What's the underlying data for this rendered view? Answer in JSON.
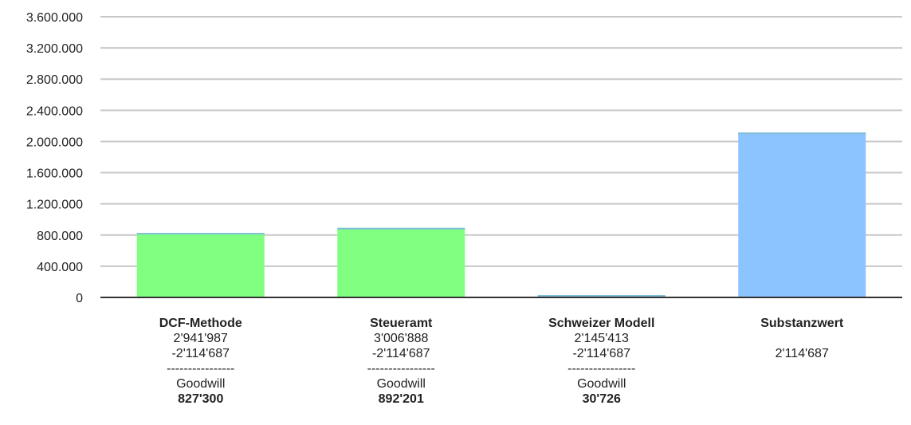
{
  "chart_data": {
    "type": "bar",
    "categories": [
      "DCF-Methode",
      "Steueramt",
      "Schweizer Modell",
      "Substanzwert"
    ],
    "values": [
      827300,
      892201,
      30726,
      2114687
    ],
    "ylim": [
      0,
      3600000
    ],
    "yticks": [
      "0",
      "400.000",
      "800.000",
      "1.200.000",
      "1.600.000",
      "2.000.000",
      "2.400.000",
      "2.800.000",
      "3.200.000",
      "3.600.000"
    ],
    "ytick_values": [
      0,
      400000,
      800000,
      1200000,
      1600000,
      2000000,
      2400000,
      2800000,
      3200000,
      3600000
    ],
    "grid": true,
    "colors": {
      "goodwill": "#80ff80",
      "substanz": "#8cc4ff",
      "bar_top": "#7fbfd8",
      "grid": "#c8c8c8",
      "axis": "#333333"
    }
  },
  "labels": [
    {
      "name": "DCF-Methode",
      "line1": "2'941'987",
      "line2": "-2'114'687",
      "sep": "----------------",
      "gw_label": "Goodwill",
      "gw_value": "827'300"
    },
    {
      "name": "Steueramt",
      "line1": "3'006'888",
      "line2": "-2'114'687",
      "sep": "----------------",
      "gw_label": "Goodwill",
      "gw_value": "892'201"
    },
    {
      "name": "Schweizer Modell",
      "line1": "2'145'413",
      "line2": "-2'114'687",
      "sep": "----------------",
      "gw_label": "Goodwill",
      "gw_value": "30'726"
    },
    {
      "name": "Substanzwert",
      "line1": "",
      "line2": "2'114'687",
      "sep": "",
      "gw_label": "",
      "gw_value": ""
    }
  ]
}
